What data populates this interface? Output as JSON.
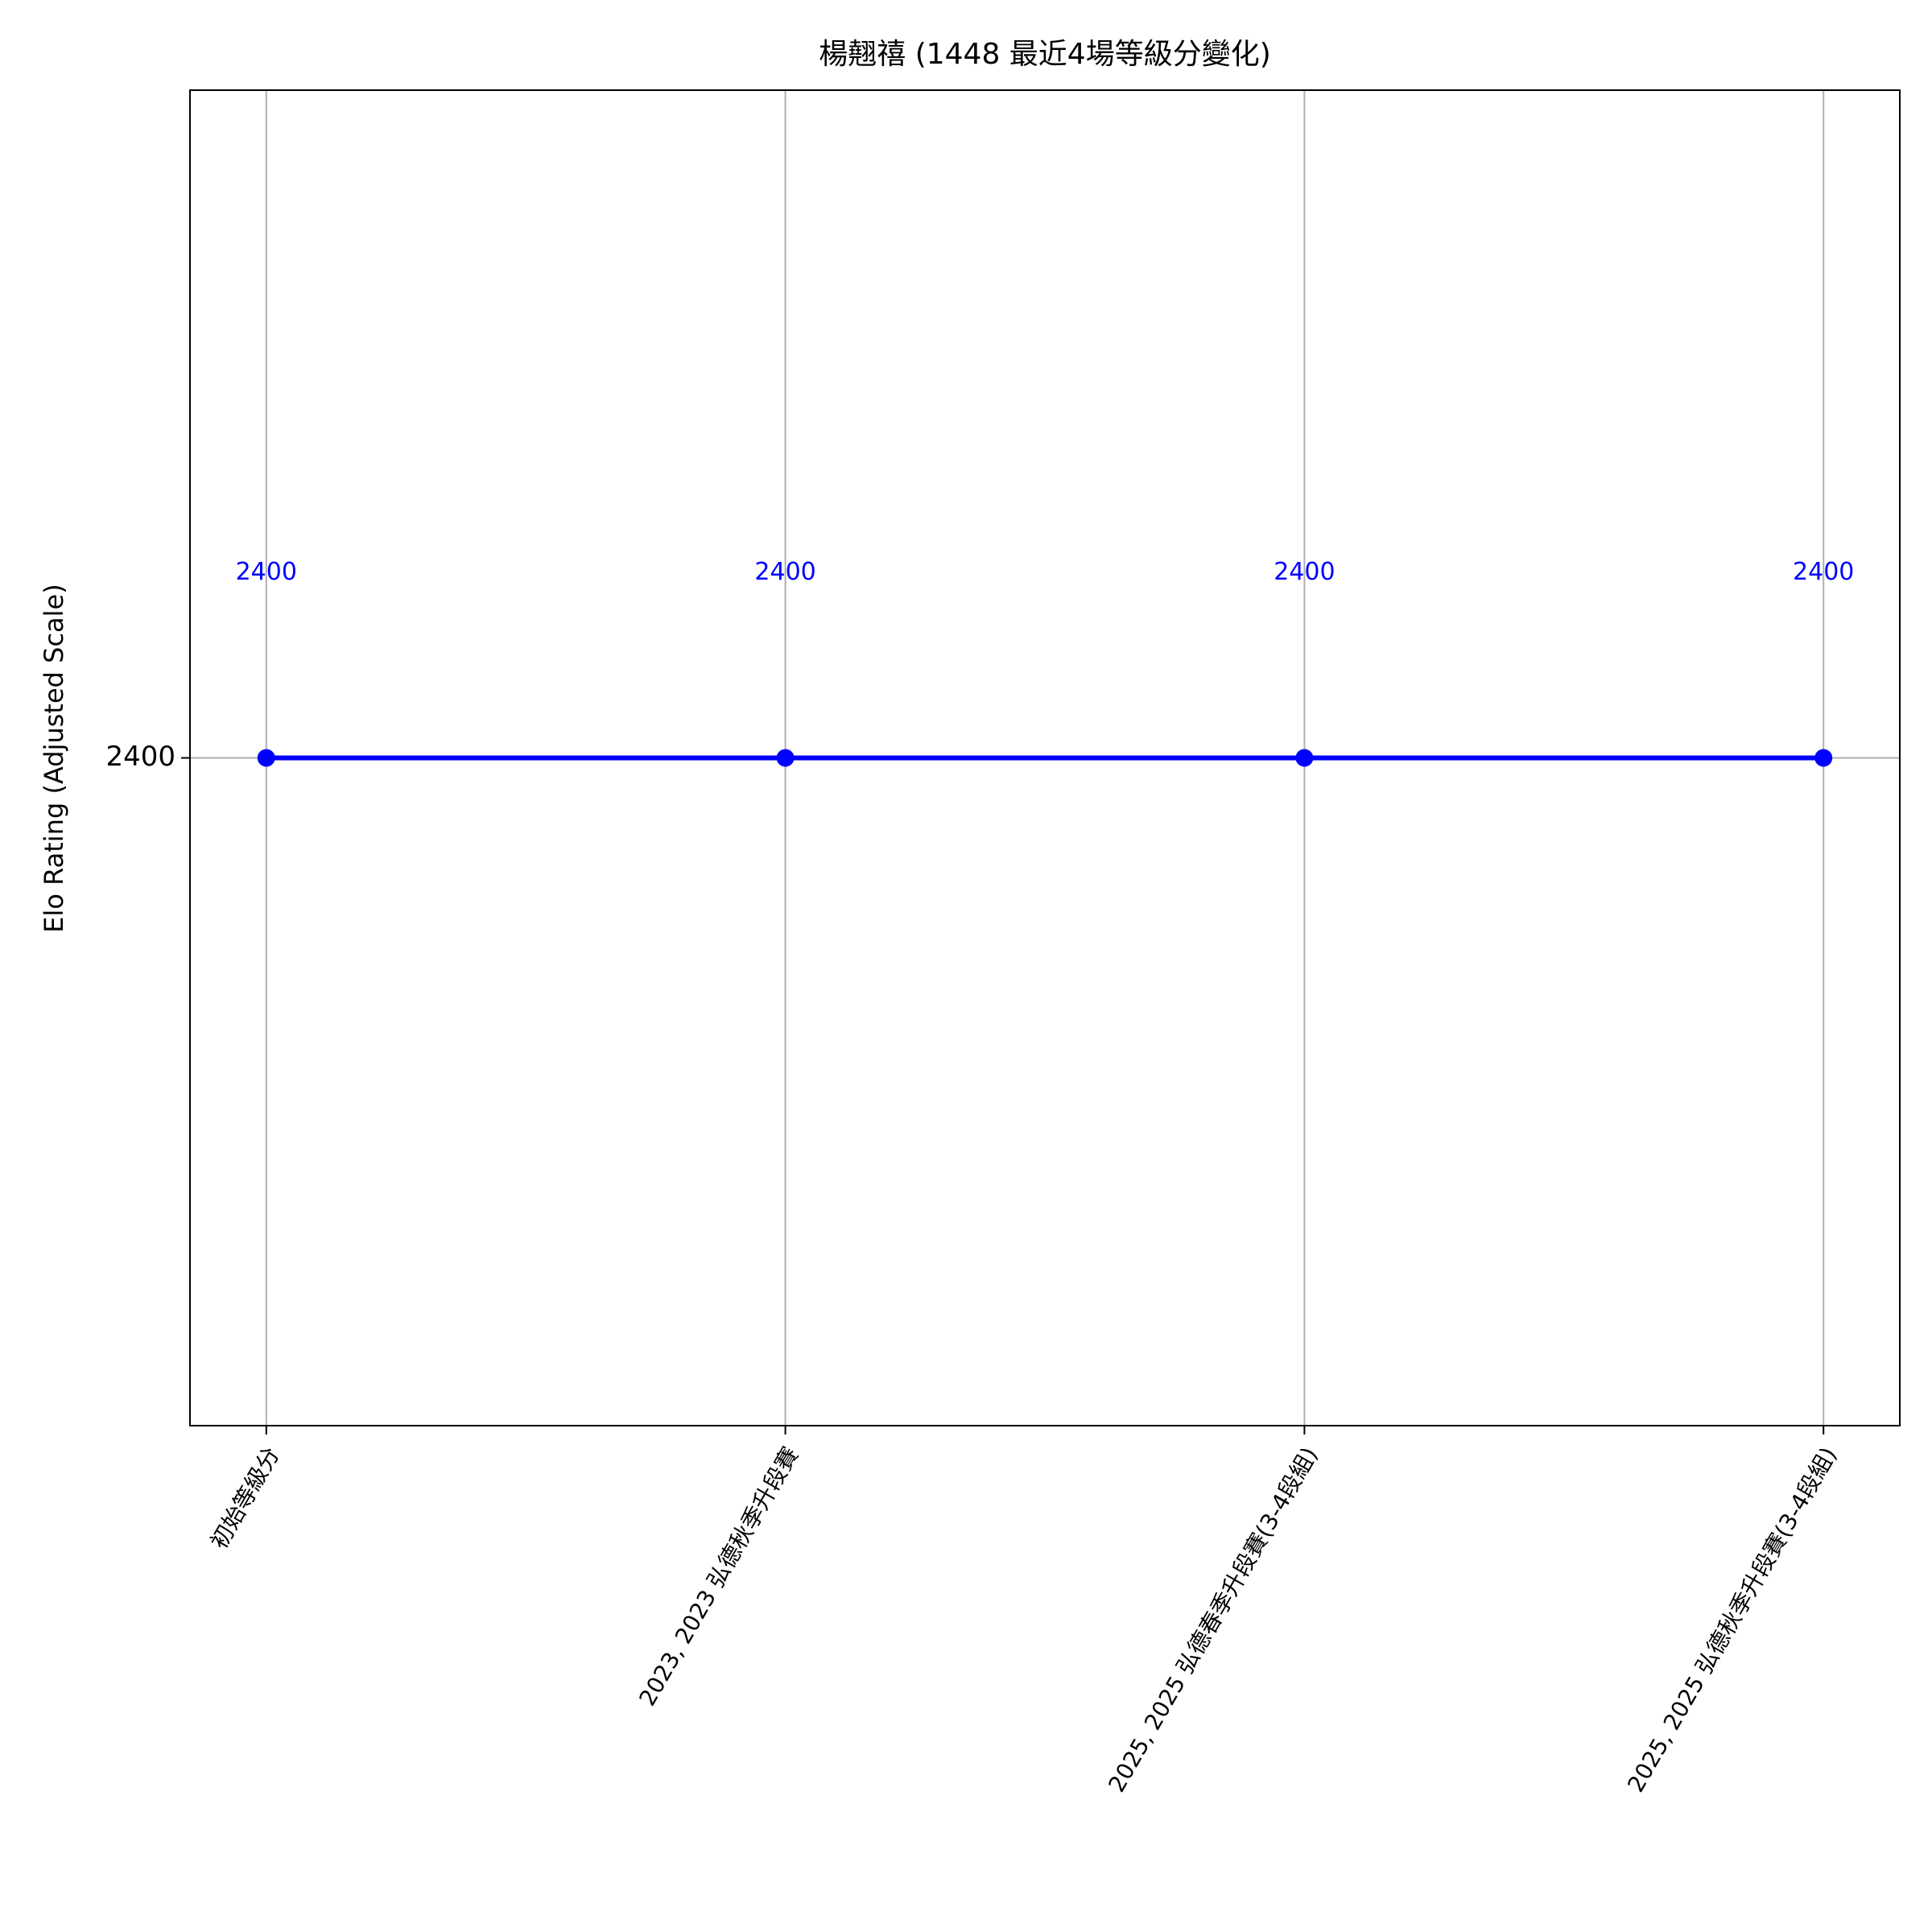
{
  "chart_data": {
    "type": "line",
    "title": "楊翹禧 (1448 最近4場等級分變化)",
    "y_label": "Elo Rating (Adjusted Scale)",
    "categories": [
      "初始等級分",
      "2023, 2023 弘德秋季升段賽",
      "2025, 2025 弘德春季升段賽(3-4段組)",
      "2025, 2025 弘德秋季升段賽(3-4段組)"
    ],
    "values": [
      2400,
      2400,
      2400,
      2400
    ],
    "color": "blue",
    "label_color": "blue",
    "ylim": [
      2397.6,
      2402.4
    ],
    "yticks": [
      2400
    ],
    "grid": true
  }
}
